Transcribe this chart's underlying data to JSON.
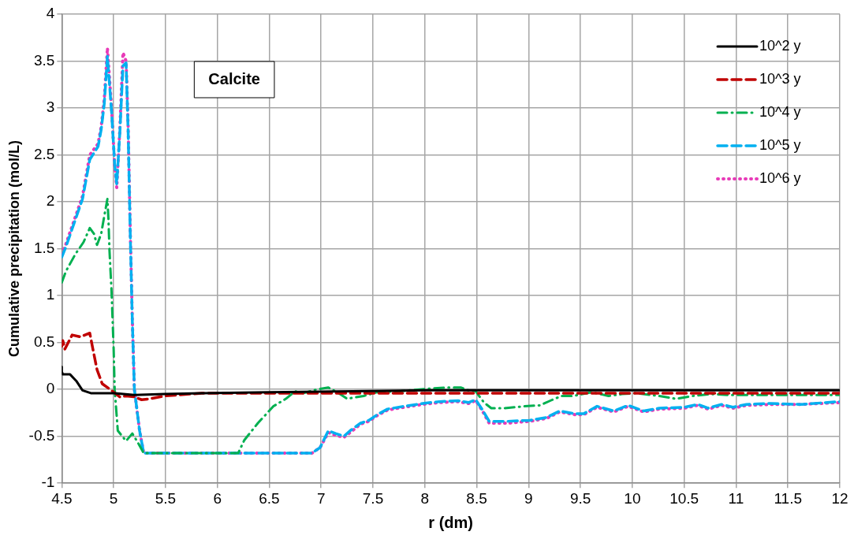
{
  "chart_data": {
    "type": "line",
    "xlabel": "r (dm)",
    "ylabel": "Cumulative precipitation (mol/L)",
    "annotations": [
      "Calcite"
    ],
    "xlim": [
      4.5,
      12
    ],
    "xticks": [
      4.5,
      5,
      5.5,
      6,
      6.5,
      7,
      7.5,
      8,
      8.5,
      9,
      9.5,
      10,
      10.5,
      11,
      11.5,
      12
    ],
    "ylim": [
      -1,
      4
    ],
    "yticks": [
      -1,
      -0.5,
      0,
      0.5,
      1,
      1.5,
      2,
      2.5,
      3,
      3.5,
      4
    ],
    "grid": true,
    "legend": "top right",
    "marker": "none",
    "series": [
      {
        "name": "10^2 y",
        "color": "#000000",
        "line_style": "solid",
        "x": [
          4.5,
          4.5,
          4.51,
          4.58,
          4.64,
          4.7,
          4.78,
          5.01,
          5.2,
          5.49,
          5.85,
          6.5,
          8,
          12
        ],
        "values": [
          0.24,
          0.19,
          0.16,
          0.16,
          0.09,
          -0.01,
          -0.04,
          -0.04,
          -0.06,
          -0.05,
          -0.04,
          -0.03,
          -0.01,
          -0.01
        ]
      },
      {
        "name": "10^3 y",
        "color": "#c00000",
        "line_style": "dashed",
        "x": [
          4.5,
          4.51,
          4.53,
          4.6,
          4.68,
          4.77,
          4.8,
          4.84,
          4.89,
          4.99,
          5.06,
          5.12,
          5.2,
          5.27,
          5.35,
          5.49,
          5.85,
          7,
          12
        ],
        "values": [
          0.46,
          0.52,
          0.43,
          0.58,
          0.56,
          0.6,
          0.43,
          0.21,
          0.06,
          -0.02,
          -0.08,
          -0.07,
          -0.08,
          -0.11,
          -0.1,
          -0.07,
          -0.04,
          -0.04,
          -0.04
        ]
      },
      {
        "name": "10^4 y",
        "color": "#00b050",
        "line_style": "dashdot",
        "x": [
          4.5,
          4.54,
          4.63,
          4.71,
          4.77,
          4.81,
          4.84,
          4.88,
          4.91,
          4.94,
          4.95,
          4.96,
          4.98,
          5.0,
          5.01,
          5.04,
          5.12,
          5.18,
          5.23,
          5.29,
          6.2,
          6.26,
          6.39,
          6.54,
          6.66,
          6.75,
          6.83,
          6.96,
          7.07,
          7.17,
          7.25,
          7.41,
          7.54,
          7.75,
          8.06,
          8.22,
          8.35,
          8.42,
          8.49,
          8.57,
          8.64,
          8.77,
          8.96,
          9.11,
          9.23,
          9.32,
          9.43,
          9.61,
          9.77,
          9.9,
          10.03,
          10.26,
          10.42,
          10.58,
          10.76,
          10.94,
          11.2,
          11.59,
          12
        ],
        "values": [
          1.14,
          1.26,
          1.44,
          1.57,
          1.72,
          1.66,
          1.54,
          1.66,
          1.85,
          2.03,
          1.81,
          1.48,
          1.04,
          0.43,
          0,
          -0.44,
          -0.55,
          -0.47,
          -0.56,
          -0.68,
          -0.68,
          -0.54,
          -0.36,
          -0.18,
          -0.1,
          -0.02,
          -0.04,
          0,
          0.02,
          -0.04,
          -0.1,
          -0.07,
          -0.03,
          -0.02,
          0.01,
          0.02,
          0.02,
          -0.01,
          -0.02,
          -0.14,
          -0.2,
          -0.2,
          -0.18,
          -0.17,
          -0.11,
          -0.07,
          -0.07,
          -0.03,
          -0.07,
          -0.05,
          -0.04,
          -0.07,
          -0.1,
          -0.07,
          -0.05,
          -0.06,
          -0.06,
          -0.06,
          -0.06
        ]
      },
      {
        "name": "10^5 y",
        "color": "#00b0f0",
        "line_style": "dashed",
        "x": [
          4.5,
          4.54,
          4.7,
          4.77,
          4.85,
          4.88,
          4.91,
          4.94,
          4.98,
          5.01,
          5.03,
          5.06,
          5.09,
          5.12,
          5.14,
          5.16,
          5.18,
          5.2,
          5.25,
          5.29,
          6.91,
          6.99,
          7.07,
          7.14,
          7.22,
          7.28,
          7.38,
          7.46,
          7.54,
          7.64,
          7.8,
          7.98,
          8.14,
          8.32,
          8.42,
          8.49,
          8.55,
          8.62,
          8.8,
          9.01,
          9.17,
          9.3,
          9.45,
          9.53,
          9.66,
          9.82,
          9.96,
          10.11,
          10.26,
          10.5,
          10.63,
          10.73,
          10.86,
          10.97,
          11.1,
          11.33,
          11.62,
          12
        ],
        "values": [
          1.41,
          1.52,
          2.03,
          2.45,
          2.59,
          2.77,
          3.05,
          3.55,
          2.96,
          2.4,
          2.19,
          2.74,
          3.45,
          3.48,
          2.74,
          1.66,
          0.73,
          0,
          -0.44,
          -0.68,
          -0.68,
          -0.62,
          -0.44,
          -0.47,
          -0.5,
          -0.44,
          -0.36,
          -0.33,
          -0.27,
          -0.21,
          -0.18,
          -0.15,
          -0.13,
          -0.12,
          -0.14,
          -0.11,
          -0.21,
          -0.34,
          -0.34,
          -0.33,
          -0.3,
          -0.23,
          -0.26,
          -0.26,
          -0.18,
          -0.23,
          -0.17,
          -0.23,
          -0.2,
          -0.19,
          -0.16,
          -0.2,
          -0.16,
          -0.19,
          -0.16,
          -0.15,
          -0.16,
          -0.13
        ]
      },
      {
        "name": "10^6 y",
        "color": "#e83ab8",
        "line_style": "dotted",
        "x": [
          4.5,
          4.54,
          4.7,
          4.77,
          4.85,
          4.88,
          4.91,
          4.94,
          4.98,
          5.01,
          5.03,
          5.06,
          5.09,
          5.12,
          5.14,
          5.16,
          5.18,
          5.2,
          5.25,
          5.29,
          6.91,
          6.99,
          7.07,
          7.14,
          7.22,
          7.28,
          7.38,
          7.46,
          7.54,
          7.64,
          7.8,
          7.98,
          8.14,
          8.32,
          8.42,
          8.49,
          8.55,
          8.62,
          8.8,
          9.01,
          9.17,
          9.3,
          9.45,
          9.53,
          9.66,
          9.82,
          9.96,
          10.11,
          10.26,
          10.5,
          10.63,
          10.73,
          10.86,
          10.97,
          11.1,
          11.33,
          11.62,
          12
        ],
        "values": [
          1.44,
          1.55,
          2.06,
          2.5,
          2.62,
          2.8,
          3.1,
          3.64,
          3.0,
          2.38,
          2.15,
          2.78,
          3.59,
          3.5,
          2.8,
          1.7,
          0.75,
          0,
          -0.44,
          -0.68,
          -0.68,
          -0.62,
          -0.46,
          -0.49,
          -0.51,
          -0.46,
          -0.37,
          -0.34,
          -0.28,
          -0.22,
          -0.19,
          -0.16,
          -0.14,
          -0.13,
          -0.15,
          -0.12,
          -0.22,
          -0.36,
          -0.36,
          -0.34,
          -0.31,
          -0.24,
          -0.27,
          -0.27,
          -0.19,
          -0.24,
          -0.18,
          -0.24,
          -0.21,
          -0.2,
          -0.17,
          -0.21,
          -0.17,
          -0.2,
          -0.17,
          -0.16,
          -0.16,
          -0.14
        ]
      }
    ]
  }
}
